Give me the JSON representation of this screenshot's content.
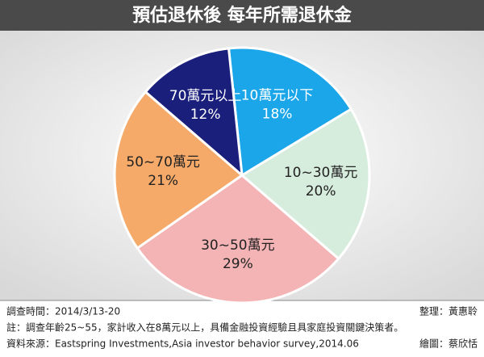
{
  "chart_data": {
    "type": "pie",
    "title": "預估退休後 每年所需退休金",
    "categories": [
      "10萬元以下",
      "10~30萬元",
      "30~50萬元",
      "50~70萬元",
      "70萬元以上"
    ],
    "values": [
      18,
      20,
      29,
      21,
      12
    ],
    "value_labels": [
      "18%",
      "20%",
      "29%",
      "21%",
      "12%"
    ],
    "colors": [
      "#1ba6ea",
      "#d6ecdd",
      "#f4b4b5",
      "#f5aa69",
      "#1b1f7c"
    ]
  },
  "footer": {
    "survey_date": "調查時間：2014/3/13-20",
    "editor": "整理：黃惠聆",
    "note": "註：調查年齡25~55，家計收入在8萬元以上，具備金融投資經驗且具家庭投資關鍵決策者。",
    "source": "資料來源：Eastspring Investments,Asia investor behavior survey,2014.06",
    "graphics": "繪圖：蔡欣恬"
  }
}
